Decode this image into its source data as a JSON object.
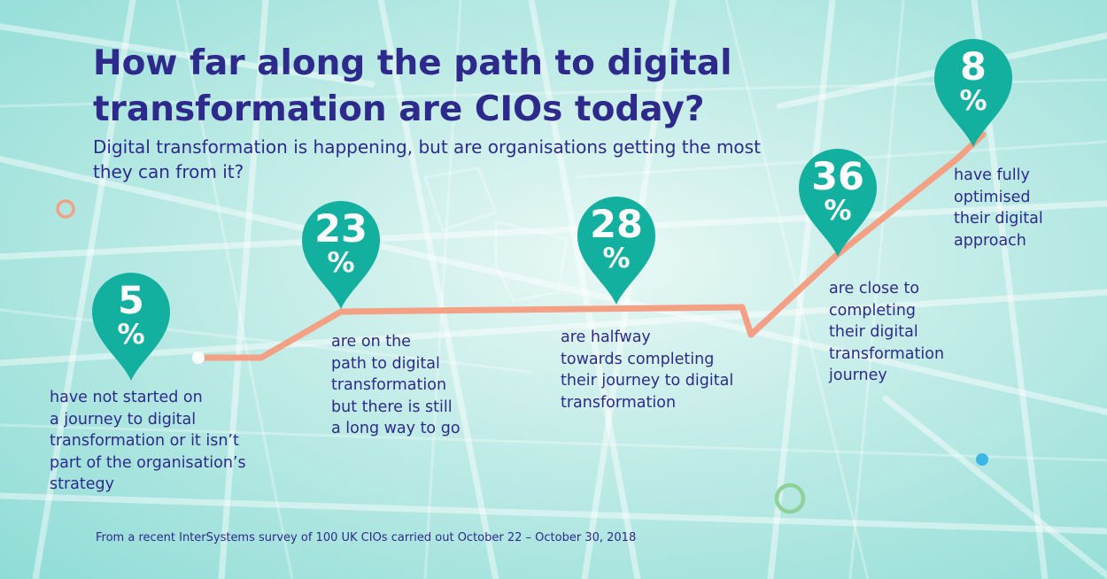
{
  "title": "How far along the path to digital transformation are CIOs today?",
  "subtitle": "Digital transformation is happening, but are organisations getting the most they can from it?",
  "stages": [
    {
      "value": "5",
      "unit": "%",
      "description": "have not started on\na journey to digital\ntransformation or it isn’t\npart of the organisation’s\nstrategy"
    },
    {
      "value": "23",
      "unit": "%",
      "description": "are on the\npath to digital\ntransformation\nbut there is still\na long way to go"
    },
    {
      "value": "28",
      "unit": "%",
      "description": "are halfway\ntowards completing\ntheir journey to digital\ntransformation"
    },
    {
      "value": "36",
      "unit": "%",
      "description": "are close to\ncompleting\ntheir digital\ntransformation\njourney"
    },
    {
      "value": "8",
      "unit": "%",
      "description": "have fully\noptimised\ntheir digital\napproach"
    }
  ],
  "footnote": "From a recent InterSystems survey of 100 UK CIOs carried out October 22 – October 30, 2018",
  "colors": {
    "title": "#2e2a8c",
    "pin": "#13b0a0",
    "path": "#f4a085",
    "ring_orange": "#f4a085",
    "ring_green": "#8ed19a",
    "dot_blue": "#3cb6e3"
  }
}
